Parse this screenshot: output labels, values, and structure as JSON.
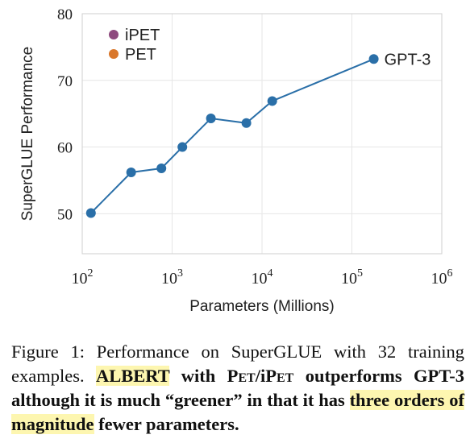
{
  "chart_data": {
    "type": "line",
    "x_scale": "log",
    "xlabel": "Parameters (Millions)",
    "ylabel": "SuperGLUE Performance",
    "x_ticks": [
      {
        "value": 100,
        "base": "10",
        "exp": "2"
      },
      {
        "value": 1000,
        "base": "10",
        "exp": "3"
      },
      {
        "value": 10000,
        "base": "10",
        "exp": "4"
      },
      {
        "value": 100000,
        "base": "10",
        "exp": "5"
      },
      {
        "value": 1000000,
        "base": "10",
        "exp": "6"
      }
    ],
    "y_ticks": [
      "50",
      "60",
      "70",
      "80"
    ],
    "xlim": [
      100,
      1000000
    ],
    "ylim": [
      44,
      80
    ],
    "grid": true,
    "series": [
      {
        "name": "GPT-3",
        "color": "#2a6fa8",
        "points": [
          {
            "x": 125,
            "y": 50.1
          },
          {
            "x": 350,
            "y": 56.2
          },
          {
            "x": 760,
            "y": 56.8
          },
          {
            "x": 1300,
            "y": 60.0
          },
          {
            "x": 2700,
            "y": 64.3
          },
          {
            "x": 6700,
            "y": 63.6
          },
          {
            "x": 13000,
            "y": 66.9
          },
          {
            "x": 175000,
            "y": 73.2
          }
        ]
      }
    ],
    "legend": {
      "placement": "top-left",
      "items": [
        {
          "label": "iPET",
          "color": "#8e4a7e"
        },
        {
          "label": "PET",
          "color": "#d9772b"
        }
      ]
    }
  },
  "caption": {
    "fig_label": "Figure 1:",
    "text1": " Performance on SuperGLUE with 32 training examples. ",
    "albert": "ALBERT",
    "with": " with ",
    "pet": "Pet",
    "slash": "/i",
    "ipet": "Pet",
    "text2": " outperforms GPT-3 although it is much “greener” in that it has ",
    "hl2": "three orders of magnitude",
    "text3": " fewer parameters."
  }
}
